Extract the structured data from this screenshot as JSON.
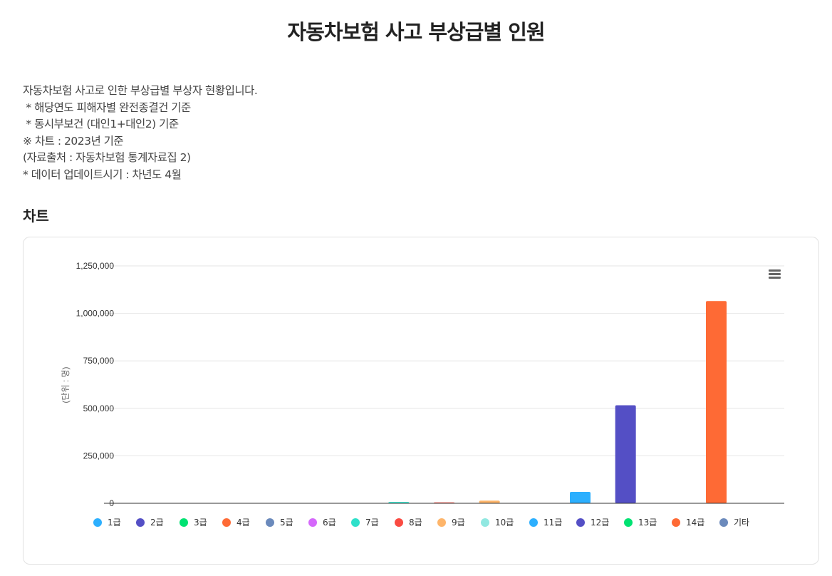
{
  "page": {
    "title": "자동차보험 사고 부상급별 인원",
    "description": [
      "자동차보험 사고로 인한 부상급별 부상자 현황입니다.",
      " * 해당연도 피해자별 완전종결건 기준",
      " * 동시부보건 (대인1+대인2) 기준",
      "※ 차트 : 2023년 기준",
      "(자료출처 : 자동차보험 통계자료집 2)",
      "* 데이터 업데이트시기 : 차년도 4월"
    ],
    "section_title": "차트"
  },
  "chart_data": {
    "type": "bar",
    "title": "",
    "ylabel": "(단위 : 명)",
    "ylim": [
      0,
      1250000
    ],
    "yticks": [
      0,
      250000,
      500000,
      750000,
      1000000,
      1250000
    ],
    "ytick_labels": [
      "0",
      "250,000",
      "500,000",
      "750,000",
      "1,000,000",
      "1,250,000"
    ],
    "grid": true,
    "legend_position": "bottom",
    "categories": [
      "1급",
      "2급",
      "3급",
      "4급",
      "5급",
      "6급",
      "7급",
      "8급",
      "9급",
      "10급",
      "11급",
      "12급",
      "13급",
      "14급",
      "기타"
    ],
    "values": [
      300,
      1500,
      600,
      900,
      1200,
      1800,
      7000,
      4500,
      14000,
      1500,
      60000,
      516000,
      500,
      1065000,
      200
    ],
    "colors": [
      "#2caffe",
      "#544fc5",
      "#00e272",
      "#fe6a35",
      "#6b8abc",
      "#d568fb",
      "#2ee0ca",
      "#fa4b42",
      "#feb56a",
      "#91e8e1",
      "#2caffe",
      "#544fc5",
      "#00e272",
      "#fe6a35",
      "#6b8abc"
    ]
  }
}
